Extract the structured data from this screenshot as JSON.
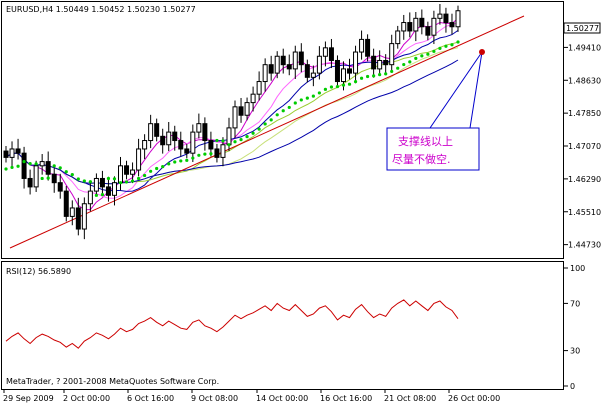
{
  "header": {
    "symbol_line": "EURUSD,H4  1.50449  1.50452  1.50230  1.50277",
    "last_price_tag": "1.50277"
  },
  "price_axis": {
    "ticks": [
      "1.50277",
      "1.49410",
      "1.48630",
      "1.47850",
      "1.47070",
      "1.46290",
      "1.45510",
      "1.44730"
    ]
  },
  "rsi_panel": {
    "label": "RSI(12) 56.5890",
    "ticks": [
      "100",
      "70",
      "30",
      "0"
    ]
  },
  "footer": {
    "copyright": "MetaTrader, ? 2001-2008 MetaQuotes Software Corp."
  },
  "time_axis": {
    "labels": [
      "29 Sep 2009",
      "2 Oct 00:00",
      "6 Oct 16:00",
      "9 Oct 08:00",
      "14 Oct 00:00",
      "16 Oct 16:00",
      "21 Oct 08:00",
      "26 Oct 00:00"
    ]
  },
  "annotation": {
    "line1": "支撑线以上",
    "line2": "尽量不做空."
  },
  "colors": {
    "candle": "#000000",
    "bull_body": "#ffffff",
    "bear_body": "#000000",
    "ma_fast": "#cc00cc",
    "ma_mid": "#0000aa",
    "ma_slow": "#9acd32",
    "support_line": "#cc0000",
    "sar": "#00cc00",
    "rsi_line": "#cc0000",
    "annotation_text": "#cc00cc",
    "annotation_line": "#0000cc",
    "annotation_dot": "#cc0000"
  },
  "chart_data": {
    "type": "candlestick",
    "symbol": "EURUSD",
    "timeframe": "H4",
    "ohlc_last": {
      "open": 1.50449,
      "high": 1.50452,
      "low": 1.5023,
      "close": 1.50277
    },
    "y_range": [
      1.4446,
      1.5044
    ],
    "rsi_period": 12,
    "rsi_last": 56.589,
    "rsi_range": [
      0,
      100
    ],
    "closes": [
      1.468,
      1.47,
      1.469,
      1.463,
      1.461,
      1.466,
      1.467,
      1.464,
      1.462,
      1.46,
      1.454,
      1.456,
      1.451,
      1.457,
      1.46,
      1.463,
      1.461,
      1.459,
      1.462,
      1.466,
      1.464,
      1.465,
      1.47,
      1.472,
      1.476,
      1.473,
      1.471,
      1.474,
      1.472,
      1.47,
      1.469,
      1.474,
      1.476,
      1.472,
      1.47,
      1.468,
      1.471,
      1.475,
      1.48,
      1.478,
      1.481,
      1.483,
      1.486,
      1.49,
      1.488,
      1.492,
      1.49,
      1.489,
      1.493,
      1.49,
      1.487,
      1.488,
      1.492,
      1.494,
      1.491,
      1.486,
      1.489,
      1.488,
      1.493,
      1.496,
      1.492,
      1.489,
      1.491,
      1.49,
      1.495,
      1.498,
      1.5,
      1.498,
      1.501,
      1.499,
      1.497,
      1.501,
      1.502,
      1.5,
      1.499,
      1.5028
    ],
    "rsi": [
      38,
      42,
      45,
      40,
      36,
      41,
      44,
      42,
      39,
      37,
      33,
      36,
      32,
      38,
      41,
      45,
      43,
      40,
      44,
      49,
      46,
      48,
      53,
      55,
      58,
      54,
      51,
      55,
      52,
      49,
      48,
      54,
      56,
      51,
      49,
      46,
      50,
      55,
      60,
      57,
      60,
      62,
      65,
      68,
      64,
      70,
      66,
      64,
      69,
      64,
      59,
      61,
      66,
      68,
      63,
      56,
      60,
      58,
      65,
      69,
      63,
      58,
      61,
      59,
      66,
      70,
      73,
      68,
      72,
      68,
      64,
      70,
      72,
      67,
      64,
      57
    ]
  }
}
